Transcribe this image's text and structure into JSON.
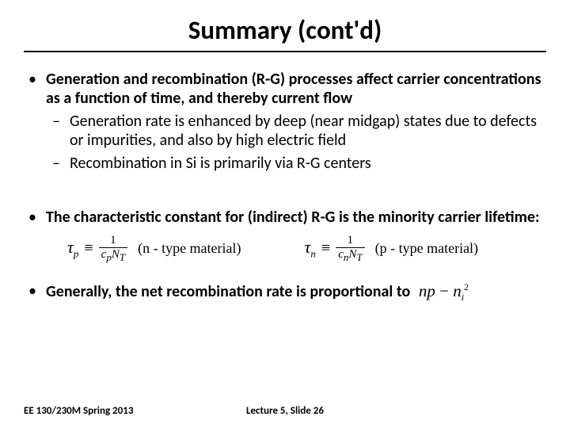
{
  "title": "Summary (cont'd)",
  "bullet1": {
    "lead": "Generation and recombination (R-G) processes affect carrier concentrations as a function of time, and thereby current flow",
    "sub1": "Generation rate is enhanced by deep (near midgap) states due to defects or impurities, and also by high electric field",
    "sub2": "Recombination in Si is primarily via R-G centers"
  },
  "bullet2": "The characteristic constant for (indirect) R-G is the minority carrier lifetime:",
  "equations": {
    "left": {
      "tau": "τ",
      "tau_sub": "p",
      "equiv": "≡",
      "num": "1",
      "den_c": "c",
      "den_csub": "p",
      "den_N": "N",
      "den_Nsub": "T",
      "note": "(n - type material)"
    },
    "right": {
      "tau": "τ",
      "tau_sub": "n",
      "equiv": "≡",
      "num": "1",
      "den_c": "c",
      "den_csub": "n",
      "den_N": "N",
      "den_Nsub": "T",
      "note": "(p - type material)"
    }
  },
  "bullet3": {
    "text": "Generally, the net recombination rate is proportional to",
    "math_np": "np",
    "math_minus": " − ",
    "math_n": "n",
    "math_i": "i",
    "math_sq": "2"
  },
  "footer": {
    "left": "EE 130/230M Spring 2013",
    "center": "Lecture 5, Slide 26"
  },
  "colors": {
    "text": "#000000",
    "bg": "#ffffff"
  },
  "fontsize": {
    "title": 33,
    "body": 20,
    "footer": 13,
    "math": 19
  }
}
